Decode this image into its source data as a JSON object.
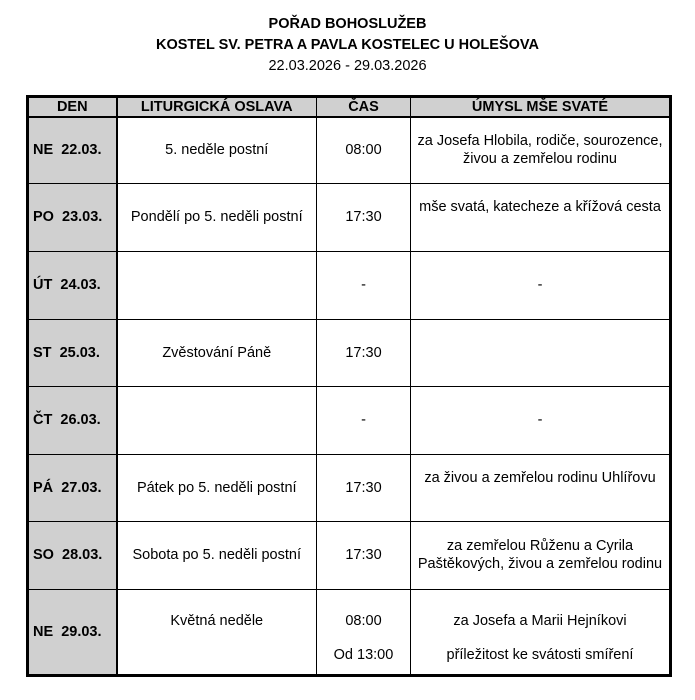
{
  "header": {
    "title": "POŘAD BOHOSLUŽEB",
    "church": "KOSTEL SV. PETRA A PAVLA KOSTELEC U HOLEŠOVA",
    "date_range": "22.03.2026 - 29.03.2026"
  },
  "table": {
    "columns": [
      "DEN",
      "LITURGICKÁ OSLAVA",
      "ČAS",
      "ÚMYSL MŠE SVATÉ"
    ],
    "rows": [
      {
        "day": "NE  22.03.",
        "celebration": "5. neděle postní",
        "times": [
          "08:00"
        ],
        "intentions": [
          "za Josefa Hlobila, rodiče, sourozence, živou a zemřelou rodinu"
        ]
      },
      {
        "day": "PO  23.03.",
        "celebration": "Pondělí po 5. neděli postní",
        "times": [
          "17:30"
        ],
        "intentions": [
          "mše svatá, katecheze a křížová cesta"
        ]
      },
      {
        "day": "ÚT  24.03.",
        "celebration": "",
        "times": [
          "-"
        ],
        "intentions": [
          "-"
        ]
      },
      {
        "day": "ST  25.03.",
        "celebration": "Zvěstování Páně",
        "times": [
          "17:30"
        ],
        "intentions": [
          ""
        ]
      },
      {
        "day": "ČT  26.03.",
        "celebration": "",
        "times": [
          "-"
        ],
        "intentions": [
          "-"
        ]
      },
      {
        "day": "PÁ  27.03.",
        "celebration": "Pátek po 5. neděli postní",
        "times": [
          "17:30"
        ],
        "intentions": [
          "za živou a zemřelou rodinu Uhlířovu"
        ]
      },
      {
        "day": "SO  28.03.",
        "celebration": "Sobota po 5. neděli postní",
        "times": [
          "17:30"
        ],
        "intentions": [
          "za zemřelou Růženu a Cyrila Paštěkových, živou a zemřelou rodinu"
        ]
      },
      {
        "day": "NE  29.03.",
        "celebration": "Květná neděle",
        "times": [
          "08:00",
          "Od 13:00"
        ],
        "intentions": [
          "za Josefa a Marii Hejníkovi",
          "příležitost ke svátosti smíření"
        ]
      }
    ]
  }
}
